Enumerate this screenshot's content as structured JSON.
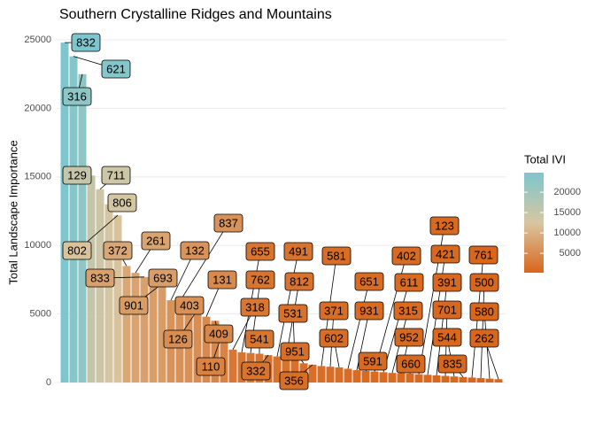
{
  "chart_data": {
    "type": "bar",
    "title": "Southern Crystalline Ridges and Mountains",
    "y_label": "Total Landscape Importance",
    "categories": [
      "832",
      "621",
      "316",
      "129",
      "711",
      "806",
      "802",
      "372",
      "261",
      "833",
      "693",
      "901",
      "132",
      "837",
      "403",
      "126",
      "131",
      "409",
      "110",
      "318",
      "655",
      "762",
      "541",
      "332",
      "491",
      "812",
      "531",
      "951",
      "356",
      "581",
      "371",
      "602",
      "651",
      "931",
      "591",
      "402",
      "611",
      "315",
      "952",
      "660",
      "123",
      "421",
      "391",
      "701",
      "544",
      "835",
      "761",
      "500",
      "580",
      "262"
    ],
    "values": [
      24800,
      23800,
      22500,
      15100,
      14100,
      13000,
      12200,
      8500,
      8000,
      7700,
      7400,
      7200,
      6000,
      5900,
      5700,
      5300,
      4800,
      4500,
      3900,
      2400,
      2200,
      2150,
      2100,
      2000,
      1900,
      1800,
      1700,
      1400,
      1300,
      1200,
      1150,
      1100,
      1000,
      900,
      850,
      800,
      750,
      700,
      680,
      650,
      600,
      560,
      520,
      480,
      440,
      400,
      360,
      320,
      280,
      240
    ],
    "ylim": [
      0,
      26100
    ],
    "yticks": [
      0,
      5000,
      10000,
      15000,
      20000,
      25000
    ],
    "grid": true,
    "legend": {
      "title": "Total IVI",
      "position": "right",
      "lim": [
        240,
        24800
      ],
      "ticks": [
        5000,
        10000,
        15000,
        20000
      ]
    },
    "color_scale": [
      "#d8661c",
      "#d8c6a0",
      "#7dc6cd"
    ]
  }
}
